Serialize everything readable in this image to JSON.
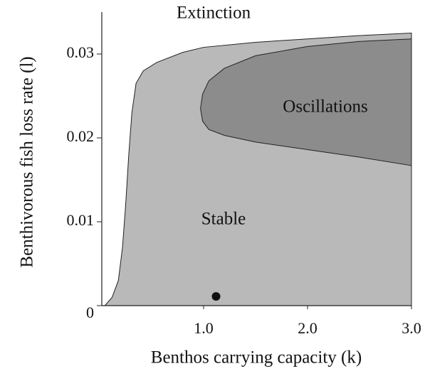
{
  "chart_data": {
    "type": "region",
    "xlabel": "Benthos carrying capacity (k)",
    "ylabel": "Benthivorous fish loss rate (l)",
    "xlim": [
      0,
      3.0
    ],
    "ylim": [
      0,
      0.035
    ],
    "xticks": [
      {
        "value": 1.0,
        "label": "1.0"
      },
      {
        "value": 2.0,
        "label": "2.0"
      },
      {
        "value": 3.0,
        "label": "3.0"
      }
    ],
    "yticks": [
      0,
      0.01,
      0.02,
      0.03
    ],
    "regions": [
      {
        "name": "Stable",
        "color": "#b9b9b9",
        "x": [
          0.05,
          0.12,
          0.18,
          0.22,
          0.25,
          0.28,
          0.31,
          0.35,
          0.42,
          0.55,
          0.8,
          1.0,
          1.5,
          2.0,
          2.5,
          3.0
        ],
        "y": [
          0,
          0.001,
          0.003,
          0.007,
          0.012,
          0.018,
          0.023,
          0.0265,
          0.028,
          0.029,
          0.0302,
          0.0308,
          0.0314,
          0.0318,
          0.0322,
          0.0325
        ]
      },
      {
        "name": "Oscillations",
        "color": "#8c8c8c",
        "x": [
          3.0,
          2.5,
          2.0,
          1.5,
          1.2,
          1.05,
          0.99,
          0.97,
          0.99,
          1.05,
          1.2,
          1.5,
          2.0,
          2.5,
          3.0
        ],
        "y": [
          0.0318,
          0.0315,
          0.0309,
          0.0298,
          0.0283,
          0.0268,
          0.0252,
          0.0235,
          0.022,
          0.021,
          0.0203,
          0.0195,
          0.0186,
          0.0177,
          0.0167
        ]
      }
    ],
    "annotations": [
      "Extinction"
    ],
    "points": {
      "x": [
        1.12
      ],
      "y": [
        0.0011
      ],
      "color": "#111111"
    }
  }
}
